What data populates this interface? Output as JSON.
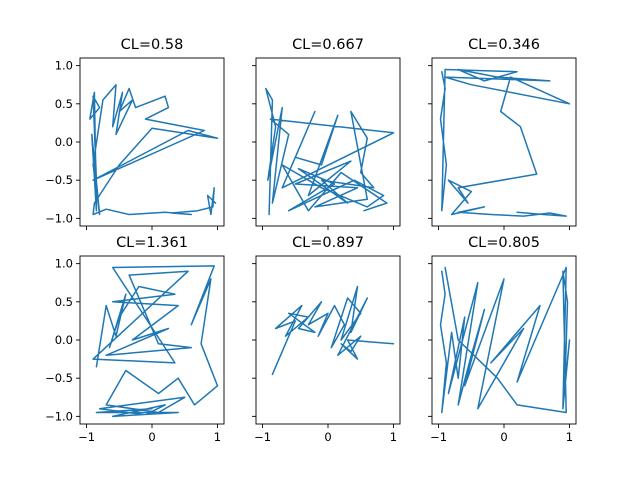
{
  "chart_data": {
    "type": "line",
    "layout": "2x3 grid, shared x and y axes",
    "grid": false,
    "legend": "none",
    "series_color": "#1f77b4",
    "xlim": [
      -1.1,
      1.1
    ],
    "ylim": [
      -1.1,
      1.1
    ],
    "x_ticks": [
      -1,
      0,
      1
    ],
    "x_tick_labels": [
      "−1",
      "0",
      "1"
    ],
    "y_ticks": [
      1.0,
      0.5,
      0.0,
      -0.5,
      -1.0
    ],
    "y_tick_labels": [
      "1.0",
      "0.5",
      "0.0",
      "−0.5",
      "−1.0"
    ],
    "panels": [
      {
        "title": "CL=0.58",
        "points": [
          [
            -0.85,
            -0.5
          ],
          [
            -0.9,
            0.6
          ],
          [
            -0.8,
            0.45
          ],
          [
            -0.95,
            0.3
          ],
          [
            -0.88,
            0.65
          ],
          [
            -0.85,
            -0.9
          ],
          [
            -0.92,
            0.1
          ],
          [
            -0.8,
            -0.95
          ],
          [
            -0.9,
            -0.3
          ],
          [
            -0.75,
            0.55
          ],
          [
            -0.55,
            0.75
          ],
          [
            -0.6,
            0.2
          ],
          [
            -0.45,
            0.65
          ],
          [
            -0.55,
            0.1
          ],
          [
            -0.3,
            0.55
          ],
          [
            -0.5,
            0.4
          ],
          [
            -0.35,
            0.7
          ],
          [
            -0.25,
            0.45
          ],
          [
            0.2,
            0.6
          ],
          [
            0.25,
            0.45
          ],
          [
            -0.1,
            0.3
          ],
          [
            0.8,
            0.15
          ],
          [
            -0.9,
            -0.5
          ],
          [
            0.55,
            0.15
          ],
          [
            1.0,
            0.05
          ],
          [
            0.0,
            0.18
          ],
          [
            -0.5,
            -0.3
          ],
          [
            -0.88,
            -0.8
          ],
          [
            -0.9,
            -0.95
          ],
          [
            -0.7,
            -0.88
          ],
          [
            -0.35,
            -0.95
          ],
          [
            0.2,
            -0.92
          ],
          [
            0.6,
            -0.95
          ],
          [
            0.3,
            -0.93
          ],
          [
            0.7,
            -0.9
          ],
          [
            0.93,
            -0.85
          ],
          [
            0.95,
            -0.6
          ],
          [
            0.9,
            -0.95
          ],
          [
            0.85,
            -0.7
          ],
          [
            0.97,
            -0.8
          ]
        ]
      },
      {
        "title": "CL=0.667",
        "points": [
          [
            -0.9,
            -0.95
          ],
          [
            -0.85,
            0.55
          ],
          [
            -0.95,
            0.7
          ],
          [
            -0.8,
            0.2
          ],
          [
            -0.92,
            -0.5
          ],
          [
            -0.7,
            0.45
          ],
          [
            -0.85,
            -0.8
          ],
          [
            -0.6,
            0.1
          ],
          [
            -0.88,
            0.3
          ],
          [
            1.0,
            0.12
          ],
          [
            -0.7,
            -0.6
          ],
          [
            -0.2,
            0.4
          ],
          [
            -0.5,
            -0.2
          ],
          [
            -0.1,
            -0.3
          ],
          [
            0.15,
            0.35
          ],
          [
            -0.3,
            -0.7
          ],
          [
            0.35,
            -0.25
          ],
          [
            -0.5,
            -0.55
          ],
          [
            0.45,
            -0.6
          ],
          [
            -0.2,
            -0.85
          ],
          [
            0.6,
            -0.75
          ],
          [
            0.35,
            0.4
          ],
          [
            0.6,
            0.05
          ],
          [
            0.5,
            -0.4
          ],
          [
            0.7,
            -0.6
          ],
          [
            -0.1,
            -0.5
          ],
          [
            0.3,
            -0.8
          ],
          [
            -0.45,
            -0.35
          ],
          [
            0.1,
            -0.55
          ],
          [
            -0.6,
            -0.9
          ],
          [
            0.4,
            -0.5
          ],
          [
            0.85,
            -0.7
          ],
          [
            0.6,
            -0.85
          ],
          [
            -0.1,
            -0.6
          ],
          [
            -0.7,
            -0.3
          ],
          [
            -0.3,
            -0.9
          ],
          [
            0.2,
            -0.4
          ],
          [
            0.9,
            -0.8
          ],
          [
            0.55,
            -0.9
          ]
        ]
      },
      {
        "title": "CL=0.346",
        "points": [
          [
            -0.95,
            0.92
          ],
          [
            -0.9,
            0.7
          ],
          [
            -0.97,
            0.3
          ],
          [
            -0.88,
            -0.3
          ],
          [
            -0.95,
            -0.9
          ],
          [
            -0.9,
            0.95
          ],
          [
            0.2,
            0.92
          ],
          [
            -0.3,
            0.8
          ],
          [
            -0.7,
            0.95
          ],
          [
            -0.1,
            0.85
          ],
          [
            0.7,
            0.8
          ],
          [
            -0.9,
            0.85
          ],
          [
            -0.5,
            0.75
          ],
          [
            1.0,
            0.5
          ],
          [
            0.1,
            0.85
          ],
          [
            -0.05,
            0.4
          ],
          [
            0.25,
            0.2
          ],
          [
            0.5,
            -0.42
          ],
          [
            -0.7,
            -0.6
          ],
          [
            -0.55,
            -0.8
          ],
          [
            -0.85,
            -0.5
          ],
          [
            -0.5,
            -0.65
          ],
          [
            -0.8,
            -0.95
          ],
          [
            -0.3,
            -0.85
          ],
          [
            -0.7,
            -0.92
          ],
          [
            -0.2,
            -0.95
          ],
          [
            0.3,
            -0.97
          ],
          [
            0.7,
            -0.93
          ],
          [
            0.95,
            -0.97
          ],
          [
            0.6,
            -0.95
          ],
          [
            0.2,
            -0.92
          ]
        ]
      },
      {
        "title": "CL=1.361",
        "points": [
          [
            -0.85,
            -0.35
          ],
          [
            -0.7,
            0.45
          ],
          [
            -0.55,
            0.05
          ],
          [
            -0.4,
            0.6
          ],
          [
            -0.65,
            -0.1
          ],
          [
            -0.5,
            0.3
          ],
          [
            -0.2,
            0.7
          ],
          [
            0.35,
            0.6
          ],
          [
            -0.6,
            0.5
          ],
          [
            0.4,
            0.45
          ],
          [
            -0.3,
            0.0
          ],
          [
            0.25,
            0.15
          ],
          [
            -0.7,
            -0.2
          ],
          [
            0.6,
            -0.1
          ],
          [
            0.1,
            -0.05
          ],
          [
            -0.35,
            0.85
          ],
          [
            0.55,
            0.9
          ],
          [
            -0.9,
            -0.25
          ],
          [
            0.35,
            -0.3
          ],
          [
            -0.6,
            0.95
          ],
          [
            0.95,
            0.97
          ],
          [
            0.6,
            0.2
          ],
          [
            0.9,
            0.8
          ],
          [
            0.75,
            -0.05
          ],
          [
            1.0,
            -0.6
          ],
          [
            0.65,
            -0.85
          ],
          [
            0.4,
            -0.5
          ],
          [
            0.1,
            -0.7
          ],
          [
            -0.4,
            -0.4
          ],
          [
            -0.7,
            -0.85
          ],
          [
            0.1,
            -0.95
          ],
          [
            0.5,
            -0.75
          ],
          [
            -0.8,
            -0.9
          ],
          [
            -0.1,
            -0.98
          ],
          [
            0.2,
            -0.85
          ],
          [
            -0.6,
            -1.0
          ],
          [
            0.4,
            -0.95
          ],
          [
            -0.85,
            -0.95
          ],
          [
            0.0,
            -0.9
          ]
        ]
      },
      {
        "title": "CL=0.897",
        "points": [
          [
            -0.85,
            -0.45
          ],
          [
            -0.5,
            0.25
          ],
          [
            -0.8,
            0.15
          ],
          [
            -0.4,
            0.45
          ],
          [
            -0.65,
            0.05
          ],
          [
            -0.3,
            0.3
          ],
          [
            -0.6,
            0.35
          ],
          [
            -0.2,
            0.1
          ],
          [
            -0.45,
            0.15
          ],
          [
            -0.1,
            0.5
          ],
          [
            -0.3,
            0.2
          ],
          [
            0.0,
            0.35
          ],
          [
            -0.15,
            0.05
          ],
          [
            0.1,
            0.45
          ],
          [
            0.25,
            0.2
          ],
          [
            0.05,
            -0.1
          ],
          [
            0.3,
            0.55
          ],
          [
            0.5,
            0.35
          ],
          [
            0.2,
            0.0
          ],
          [
            0.45,
            0.7
          ],
          [
            0.35,
            0.1
          ],
          [
            0.6,
            0.55
          ],
          [
            0.15,
            -0.2
          ],
          [
            0.5,
            0.05
          ],
          [
            0.35,
            -0.15
          ],
          [
            0.2,
            -0.05
          ],
          [
            0.45,
            -0.25
          ],
          [
            0.3,
            0.0
          ],
          [
            1.0,
            -0.05
          ]
        ]
      },
      {
        "title": "CL=0.805",
        "points": [
          [
            -0.95,
            0.9
          ],
          [
            -0.9,
            0.6
          ],
          [
            -0.97,
            0.2
          ],
          [
            -0.88,
            -0.3
          ],
          [
            -0.95,
            -0.95
          ],
          [
            -0.8,
            0.1
          ],
          [
            -0.7,
            -0.5
          ],
          [
            -0.6,
            0.3
          ],
          [
            -0.85,
            -0.7
          ],
          [
            -0.4,
            0.75
          ],
          [
            -0.7,
            -0.85
          ],
          [
            -0.5,
            -0.2
          ],
          [
            -0.3,
            0.4
          ],
          [
            -0.6,
            -0.6
          ],
          [
            0.0,
            0.8
          ],
          [
            -0.4,
            -0.9
          ],
          [
            0.3,
            0.15
          ],
          [
            -0.2,
            -0.3
          ],
          [
            0.55,
            0.45
          ],
          [
            0.2,
            -0.55
          ],
          [
            0.95,
            0.95
          ],
          [
            0.9,
            -0.9
          ],
          [
            1.0,
            0.0
          ],
          [
            0.93,
            -0.6
          ],
          [
            0.97,
            0.5
          ],
          [
            0.9,
            0.9
          ],
          [
            0.95,
            -0.95
          ],
          [
            0.2,
            -0.85
          ],
          [
            -0.1,
            -0.5
          ],
          [
            -0.7,
            0.0
          ],
          [
            -0.9,
            0.95
          ]
        ]
      }
    ]
  }
}
